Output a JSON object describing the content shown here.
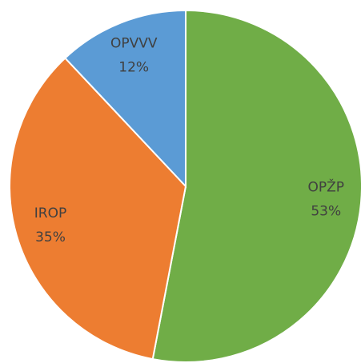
{
  "chart_data": {
    "type": "pie",
    "categories": [
      "OPŽP",
      "IROP",
      "OPVVV"
    ],
    "values": [
      53,
      35,
      12
    ],
    "value_labels": [
      "53%",
      "35%",
      "12%"
    ],
    "colors": [
      "#70ad47",
      "#ed7d31",
      "#5b9bd5"
    ]
  }
}
